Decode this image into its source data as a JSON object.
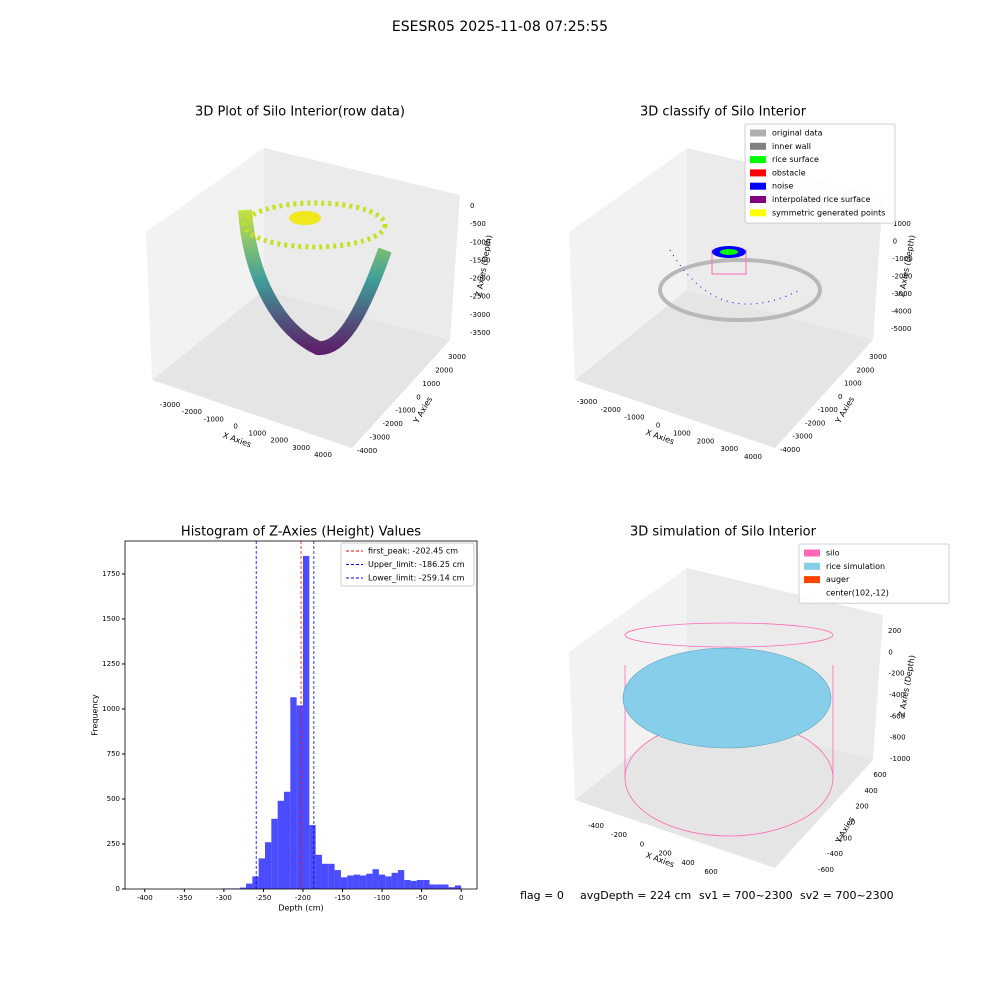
{
  "figure_title": "ESESR05 2025-11-08 07:25:55",
  "status": [
    "flag = 0",
    "avgDepth = 224 cm",
    "sv1 = 700~2300",
    "sv2 = 700~2300"
  ],
  "chart_data": [
    {
      "type": "scatter3d",
      "title": "3D Plot of Silo Interior(row data)",
      "xlabel": "X Axies",
      "ylabel": "Y Axies",
      "zlabel": "Z Axies (Depth)",
      "xticks": [
        -3000,
        -2000,
        -1000,
        0,
        1000,
        2000,
        3000,
        4000
      ],
      "yticks": [
        3000,
        2000,
        1000,
        0,
        -1000,
        -2000,
        -3000,
        -4000
      ],
      "zticks": [
        0,
        -500,
        -1000,
        -1500,
        -2000,
        -2500,
        -3000,
        -3500
      ]
    },
    {
      "type": "scatter3d",
      "title": "3D classify of Silo Interior",
      "xlabel": "X Axies",
      "ylabel": "Y Axies",
      "zlabel": "Z Axies (Depth)",
      "xticks": [
        -3000,
        -2000,
        -1000,
        0,
        1000,
        2000,
        3000,
        4000
      ],
      "yticks": [
        3000,
        2000,
        1000,
        0,
        -1000,
        -2000,
        -3000,
        -4000
      ],
      "zticks": [
        1000,
        0,
        -1000,
        -2000,
        -3000,
        -4000,
        -5000
      ],
      "series": [
        {
          "name": "original data",
          "color": "#b0b0b0"
        },
        {
          "name": "inner wall",
          "color": "#808080"
        },
        {
          "name": "rice surface",
          "color": "#00ff00"
        },
        {
          "name": "obstacle",
          "color": "#ff0000"
        },
        {
          "name": "noise",
          "color": "#0000ff"
        },
        {
          "name": "interpolated rice surface",
          "color": "#800080"
        },
        {
          "name": "symmetric generated points",
          "color": "#ffff00"
        }
      ]
    },
    {
      "type": "histogram",
      "title": "Histogram of Z-Axies (Height) Values",
      "xlabel": "Depth (cm)",
      "ylabel": "Frequency",
      "color": "#0000ff",
      "xlim": [
        -425,
        20
      ],
      "ylim": [
        0,
        1933
      ],
      "xticks": [
        -400,
        -350,
        -300,
        -250,
        -200,
        -150,
        -100,
        -50,
        0
      ],
      "yticks": [
        0,
        250,
        500,
        750,
        1000,
        1250,
        1500,
        1750
      ],
      "bins": [
        -304,
        -296,
        -288,
        -280,
        -272,
        -264,
        -256,
        -248,
        -240,
        -232,
        -224,
        -216,
        -208,
        -200,
        -192,
        -184,
        -176,
        -168,
        -160,
        -152,
        -144,
        -136,
        -128,
        -120,
        -112,
        -104,
        -96,
        -88,
        -80,
        -72,
        -64,
        -56,
        -48,
        -40,
        -32,
        -24,
        -16,
        -8,
        0
      ],
      "values": [
        3,
        3,
        3,
        8,
        30,
        70,
        170,
        260,
        390,
        490,
        540,
        1065,
        1020,
        1850,
        355,
        190,
        140,
        140,
        105,
        65,
        75,
        80,
        75,
        85,
        110,
        80,
        70,
        90,
        105,
        50,
        45,
        50,
        50,
        25,
        25,
        25,
        10,
        20
      ],
      "vlines": [
        {
          "name": "first_peak: -202.45 cm",
          "value": -202.45,
          "color": "#ff0000"
        },
        {
          "name": "Upper_limit: -186.25 cm",
          "value": -186.25,
          "color": "#0000ff"
        },
        {
          "name": "Lower_limit: -259.14 cm",
          "value": -259.14,
          "color": "#0000ff"
        }
      ],
      "legend": "upper right"
    },
    {
      "type": "surface3d",
      "title": "3D simulation of Silo Interior",
      "xlabel": "X Axies",
      "ylabel": "Y Axies",
      "zlabel": "Z Axies (Depth)",
      "xticks": [
        -400,
        -200,
        0,
        200,
        400,
        600
      ],
      "yticks": [
        600,
        400,
        200,
        0,
        -200,
        -400,
        -600
      ],
      "zticks": [
        200,
        0,
        -200,
        -400,
        -600,
        -800,
        -1000
      ],
      "series": [
        {
          "name": "silo",
          "color": "#ff69b4"
        },
        {
          "name": "rice simulation",
          "color": "#87ceeb"
        },
        {
          "name": "auger",
          "color": "#ff4500"
        },
        {
          "name": "center(102,-12)",
          "color": null
        }
      ]
    }
  ]
}
